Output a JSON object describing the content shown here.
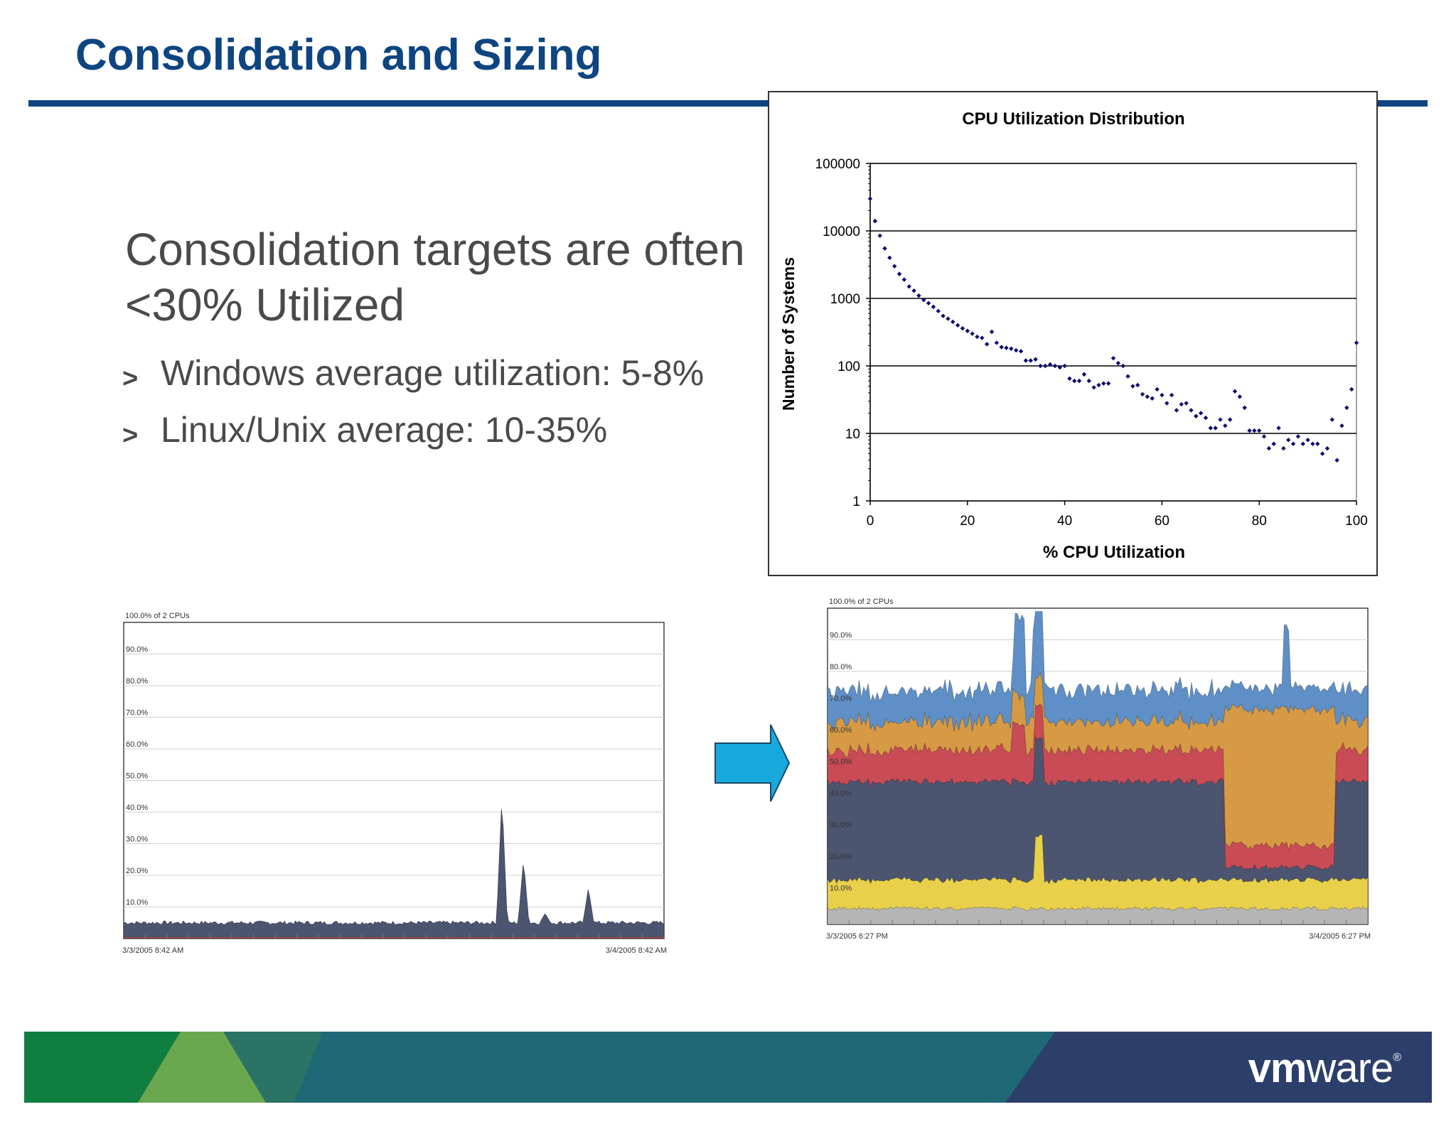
{
  "slide": {
    "title": "Consolidation and Sizing",
    "headline": "Consolidation targets are often <30% Utilized",
    "bullets": [
      "Windows average utilization: 5-8%",
      "Linux/Unix average: 10-35%"
    ],
    "bullet_marker": ">",
    "logo": {
      "bold": "vm",
      "light": "ware",
      "mark": "®"
    },
    "colors": {
      "title": "#0e4580",
      "text": "#4a4a4a",
      "arrow": "#18a9dc",
      "marker": "#0a0a6e"
    }
  },
  "chart_data": [
    {
      "type": "scatter",
      "title": "CPU Utilization Distribution",
      "xlabel": "% CPU Utilization",
      "ylabel": "Number of Systems",
      "xlim": [
        0,
        100
      ],
      "ylim": [
        1,
        100000
      ],
      "yscale": "log",
      "xticks": [
        0,
        20,
        40,
        60,
        80,
        100
      ],
      "yticks": [
        1,
        10,
        100,
        1000,
        10000,
        100000
      ],
      "ytick_labels": [
        "1",
        "10",
        "100",
        "1000",
        "10000",
        "100000"
      ],
      "grid": "horizontal",
      "x": [
        0,
        1,
        2,
        3,
        4,
        5,
        6,
        7,
        8,
        9,
        10,
        11,
        12,
        13,
        14,
        15,
        16,
        17,
        18,
        19,
        20,
        21,
        22,
        23,
        24,
        25,
        26,
        27,
        28,
        29,
        30,
        31,
        32,
        33,
        34,
        35,
        36,
        37,
        38,
        39,
        40,
        41,
        42,
        43,
        44,
        45,
        46,
        47,
        48,
        49,
        50,
        51,
        52,
        53,
        54,
        55,
        56,
        57,
        58,
        59,
        60,
        61,
        62,
        63,
        64,
        65,
        66,
        67,
        68,
        69,
        70,
        71,
        72,
        73,
        74,
        75,
        76,
        77,
        78,
        79,
        80,
        81,
        82,
        83,
        84,
        85,
        86,
        87,
        88,
        89,
        90,
        91,
        92,
        93,
        94,
        95,
        96,
        97,
        98,
        99,
        100
      ],
      "y": [
        30000,
        14000,
        8500,
        5500,
        4000,
        3000,
        2300,
        1900,
        1500,
        1300,
        1100,
        950,
        850,
        750,
        650,
        550,
        500,
        450,
        400,
        360,
        330,
        300,
        270,
        260,
        210,
        320,
        220,
        190,
        185,
        180,
        170,
        165,
        120,
        120,
        125,
        100,
        100,
        105,
        100,
        95,
        100,
        65,
        60,
        60,
        75,
        60,
        48,
        52,
        55,
        55,
        130,
        110,
        100,
        70,
        50,
        52,
        38,
        35,
        33,
        45,
        37,
        28,
        37,
        22,
        27,
        28,
        22,
        18,
        20,
        17,
        12,
        12,
        16,
        13,
        16,
        42,
        35,
        24,
        11,
        11,
        11,
        9,
        6,
        7,
        12,
        6,
        8,
        7,
        9,
        7,
        8,
        7,
        7,
        5,
        6,
        16,
        4,
        13,
        24,
        45,
        220
      ]
    },
    {
      "type": "area",
      "title": "",
      "ylabel": "100.0% of 2 CPUs",
      "ylim": [
        0,
        100
      ],
      "yticks": [
        10,
        20,
        30,
        40,
        50,
        60,
        70,
        80,
        90
      ],
      "ytick_labels": [
        "10.0%",
        "20.0%",
        "30.0%",
        "40.0%",
        "50.0%",
        "60.0%",
        "70.0%",
        "80.0%",
        "90.0%"
      ],
      "x_range": [
        "3/3/2005 8:42 AM",
        "3/4/2005 8:42 AM"
      ],
      "baseline": 5,
      "spikes": [
        {
          "at": 0.7,
          "peak": 45
        },
        {
          "at": 0.74,
          "peak": 25
        },
        {
          "at": 0.78,
          "peak": 8
        },
        {
          "at": 0.86,
          "peak": 16
        }
      ],
      "color": "#4c5570"
    },
    {
      "type": "area",
      "title": "",
      "ylabel": "100.0% of 2 CPUs",
      "ylim": [
        0,
        100
      ],
      "yticks": [
        10,
        20,
        30,
        40,
        50,
        60,
        70,
        80,
        90
      ],
      "ytick_labels": [
        "10.0%",
        "20.0%",
        "30.0%",
        "40.0%",
        "50.0%",
        "60.0%",
        "70.0%",
        "80.0%",
        "90.0%"
      ],
      "x_range": [
        "3/3/2005 6:27 PM",
        "3/4/2005 6:27 PM"
      ],
      "series": [
        {
          "color": "#b5b5b5",
          "base": 5
        },
        {
          "color": "#e8d04a",
          "base": 9
        },
        {
          "color": "#4c5570",
          "base": 31
        },
        {
          "color": "#c84b55",
          "base": 10
        },
        {
          "color": "#d69a45",
          "base": 9
        },
        {
          "color": "#5e8fc6",
          "base": 10
        }
      ]
    }
  ]
}
